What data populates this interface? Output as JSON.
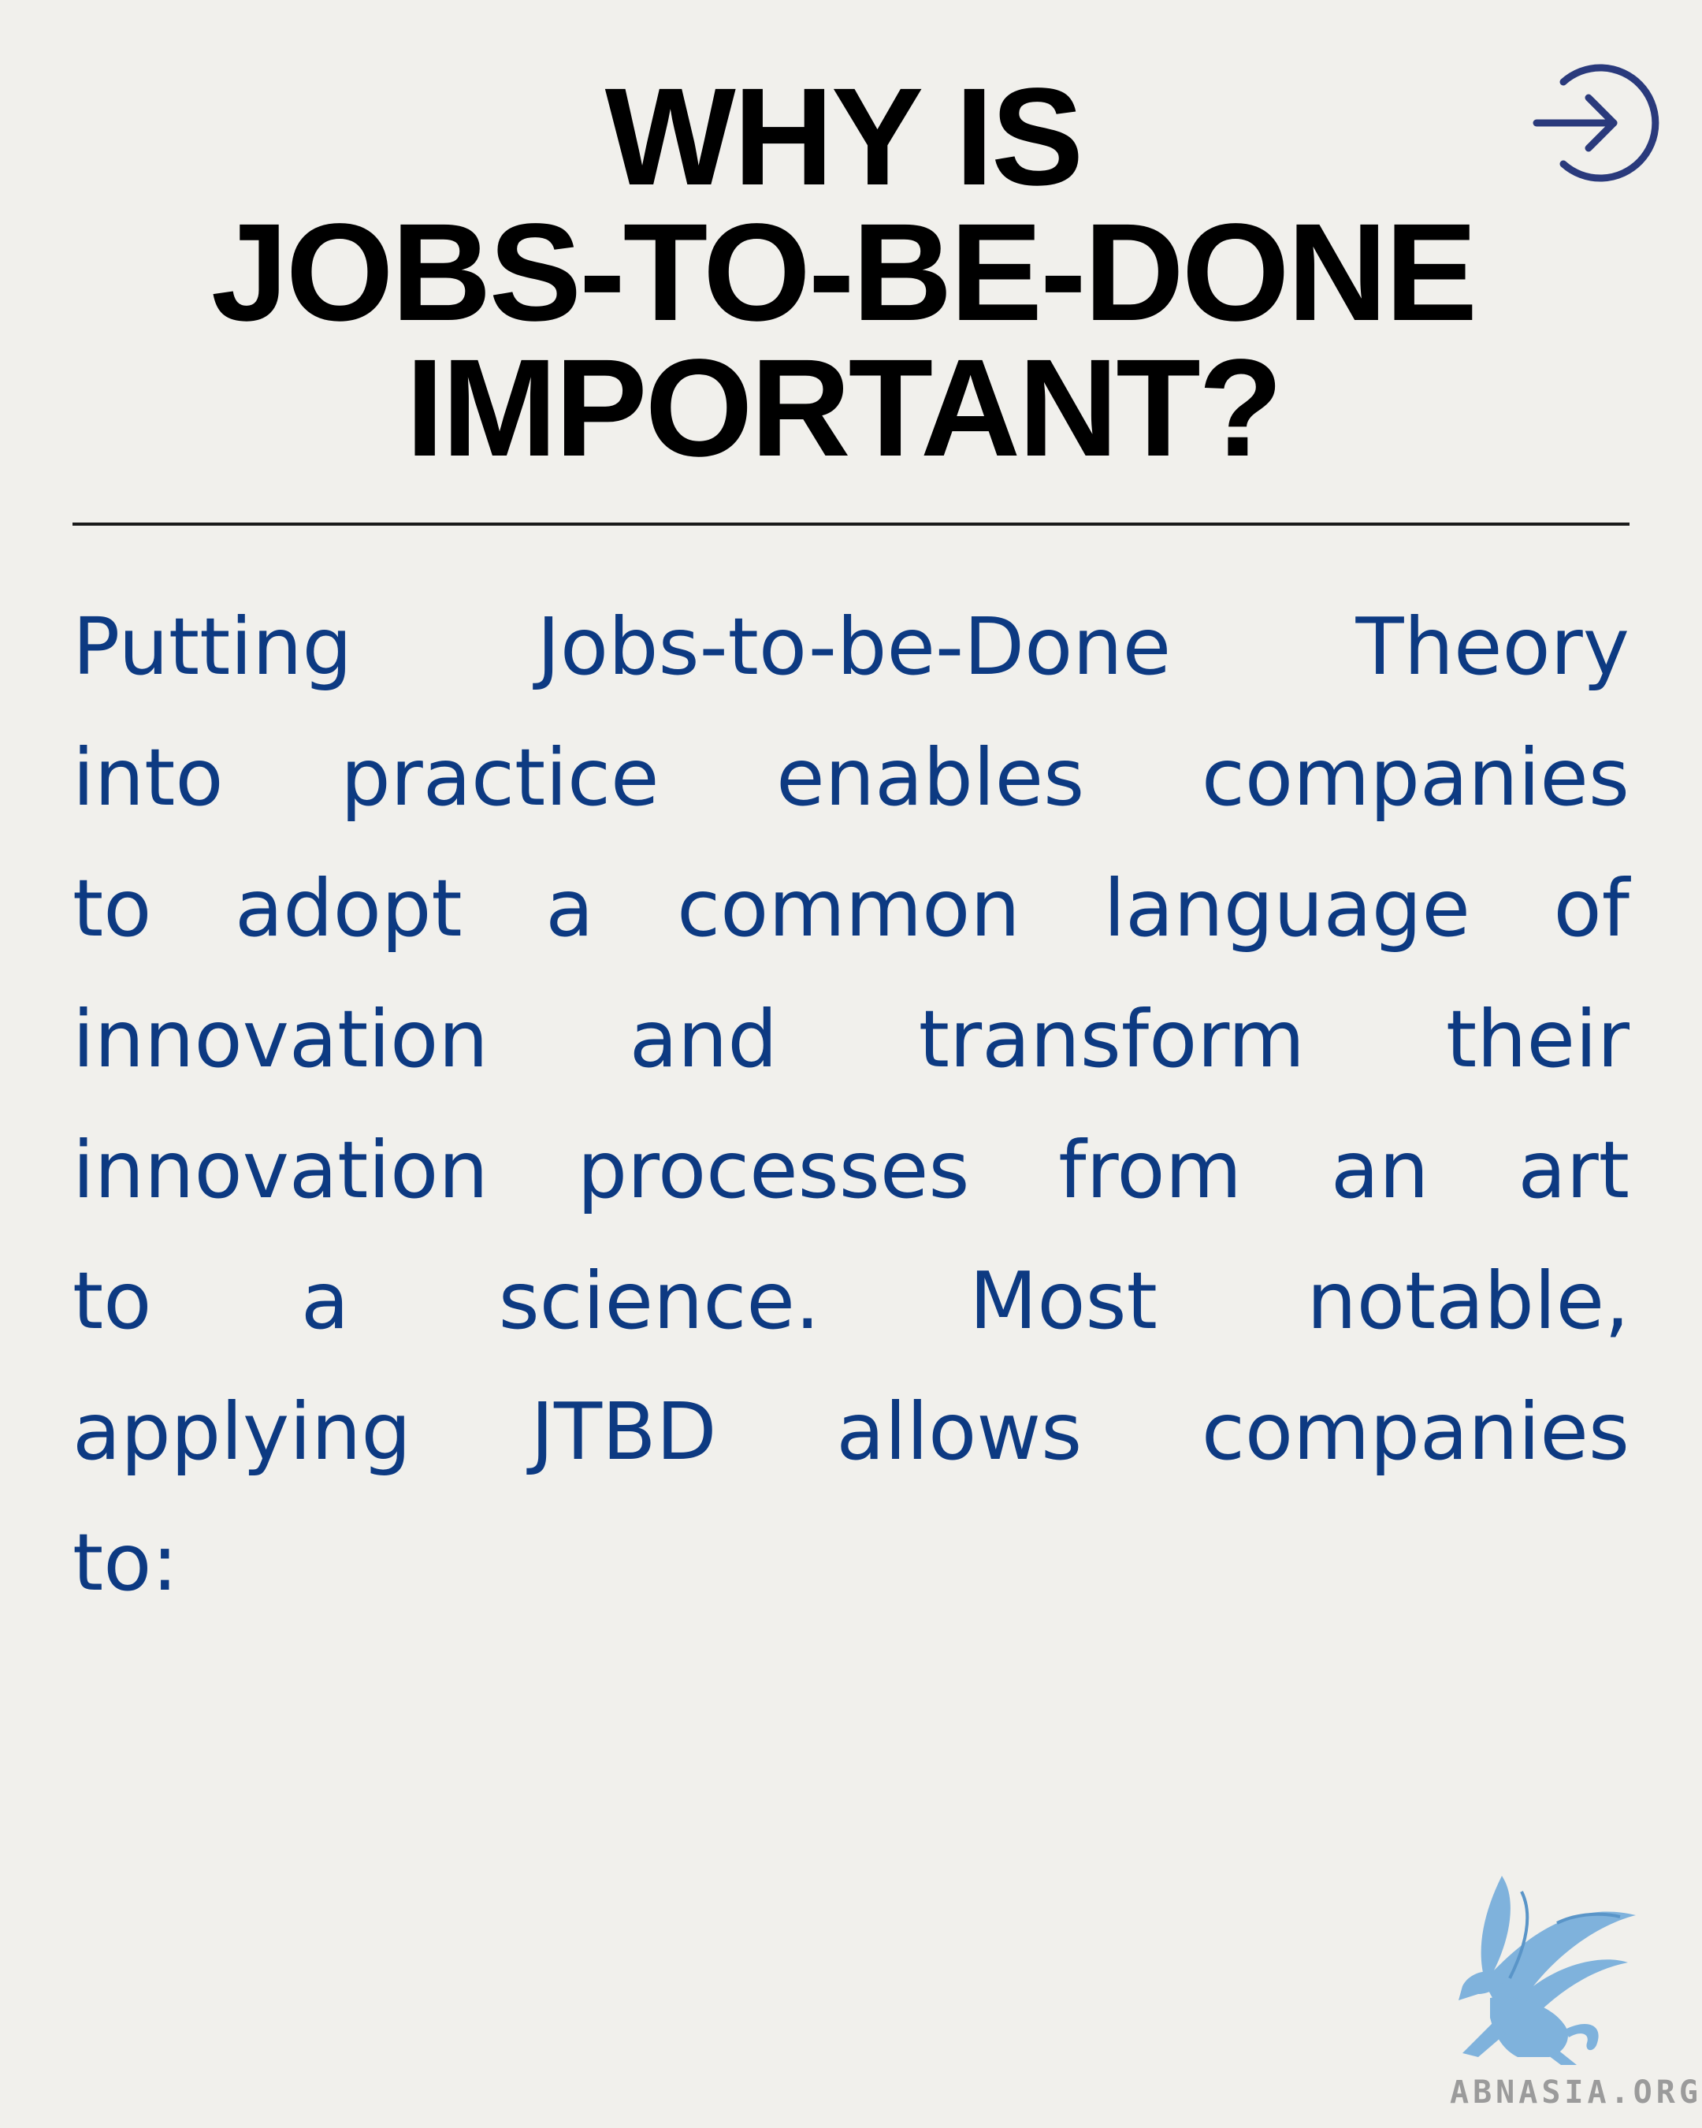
{
  "header": {
    "title_lines": [
      "WHY IS",
      "JOBS-TO-BE-DONE",
      "IMPORTANT?"
    ],
    "next_icon": "arrow-right-circle-icon"
  },
  "body": {
    "lines": [
      [
        "Putting",
        "Jobs-to-be-Done",
        "Theory"
      ],
      [
        "into",
        "practice",
        "enables",
        "companies"
      ],
      [
        "to",
        "adopt",
        "a",
        "common",
        "language",
        "of"
      ],
      [
        "innovation",
        "and",
        "transform",
        "their"
      ],
      [
        "innovation",
        "processes",
        "from",
        "an",
        "art"
      ],
      [
        "to",
        "a",
        "science.",
        "Most",
        "notable,"
      ],
      [
        "applying",
        "JTBD",
        "allows",
        "companies"
      ],
      [
        "to:"
      ]
    ]
  },
  "branding": {
    "logo_icon": "griffin-logo-icon",
    "site": "ABNASIA.ORG"
  },
  "colors": {
    "background": "#f1f0ec",
    "title": "#000000",
    "body_text": "#0d3a82",
    "icon": "#2a3a7c",
    "logo": "#7fb2dc"
  }
}
